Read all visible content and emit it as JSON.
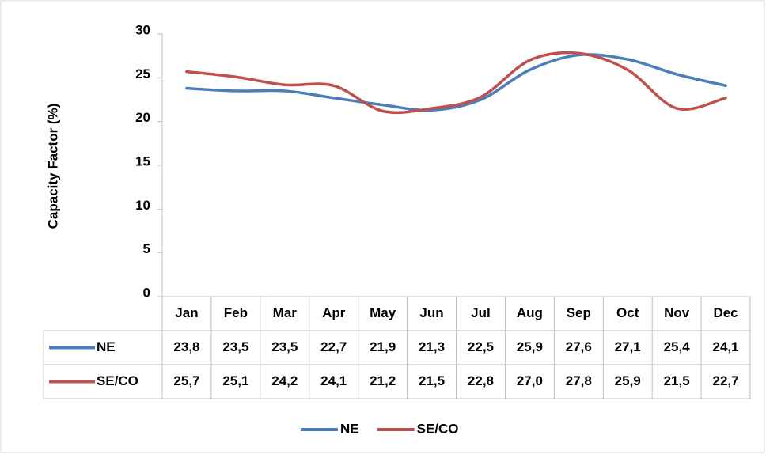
{
  "chart_data": {
    "type": "line",
    "y_label": "Capacity Factor (%)",
    "categories": [
      "Jan",
      "Feb",
      "Mar",
      "Apr",
      "May",
      "Jun",
      "Jul",
      "Aug",
      "Sep",
      "Oct",
      "Nov",
      "Dec"
    ],
    "series": [
      {
        "name": "NE",
        "color": "#4a7ebb",
        "values": [
          23.8,
          23.5,
          23.5,
          22.7,
          21.9,
          21.3,
          22.5,
          25.9,
          27.6,
          27.1,
          25.4,
          24.1
        ],
        "value_labels": [
          "23,8",
          "23,5",
          "23,5",
          "22,7",
          "21,9",
          "21,3",
          "22,5",
          "25,9",
          "27,6",
          "27,1",
          "25,4",
          "24,1"
        ]
      },
      {
        "name": "SE/CO",
        "color": "#c0504d",
        "values": [
          25.7,
          25.1,
          24.2,
          24.1,
          21.2,
          21.5,
          22.8,
          27.0,
          27.8,
          25.9,
          21.5,
          22.7
        ],
        "value_labels": [
          "25,7",
          "25,1",
          "24,2",
          "24,1",
          "21,2",
          "21,5",
          "22,8",
          "27,0",
          "27,8",
          "25,9",
          "21,5",
          "22,7"
        ]
      }
    ],
    "ylim": [
      0,
      30
    ],
    "yticks": [
      0,
      5,
      10,
      15,
      20,
      25,
      30
    ],
    "smooth": true,
    "data_table": true,
    "legend": "bottom"
  }
}
